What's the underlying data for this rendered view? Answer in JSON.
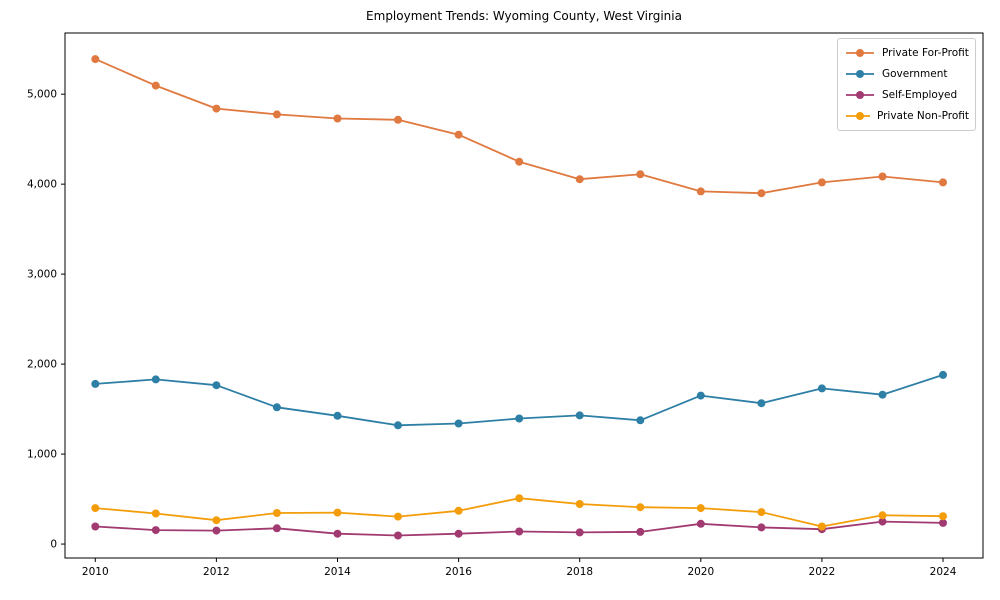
{
  "title": "Employment Trends: Wyoming County, West Virginia",
  "chart_data": {
    "type": "line",
    "title": "Employment Trends: Wyoming County, West Virginia",
    "xlabel": "",
    "ylabel": "",
    "grid": false,
    "legend_position": "upper right",
    "marker": "circle",
    "x": [
      2010,
      2011,
      2012,
      2013,
      2014,
      2015,
      2016,
      2017,
      2018,
      2019,
      2020,
      2021,
      2022,
      2023,
      2024
    ],
    "series": [
      {
        "name": "Private For-Profit",
        "color": "#e0793f",
        "values": [
          5390,
          5095,
          4840,
          4775,
          4730,
          4715,
          4550,
          4250,
          4055,
          4110,
          3920,
          3900,
          4020,
          4085,
          4020
        ]
      },
      {
        "name": "Government",
        "color": "#2e7fa6",
        "values": [
          1780,
          1830,
          1765,
          1520,
          1425,
          1320,
          1340,
          1395,
          1430,
          1375,
          1650,
          1565,
          1730,
          1660,
          1880
        ]
      },
      {
        "name": "Self-Employed",
        "color": "#a23a72",
        "values": [
          195,
          155,
          150,
          175,
          115,
          95,
          115,
          140,
          130,
          135,
          225,
          185,
          165,
          250,
          235
        ]
      },
      {
        "name": "Private Non-Profit",
        "color": "#f49d0a",
        "values": [
          400,
          340,
          265,
          345,
          350,
          305,
          370,
          510,
          445,
          410,
          400,
          355,
          195,
          320,
          310
        ]
      }
    ],
    "x_ticks": {
      "values": [
        2010,
        2012,
        2014,
        2016,
        2018,
        2020,
        2022,
        2024
      ],
      "labels": [
        "2010",
        "2012",
        "2014",
        "2016",
        "2018",
        "2020",
        "2022",
        "2024"
      ]
    },
    "y_ticks": {
      "values": [
        0,
        1000,
        2000,
        3000,
        4000,
        5000
      ],
      "labels": [
        "0",
        "1,000",
        "2,000",
        "3,000",
        "4,000",
        "5,000"
      ]
    },
    "xlim": [
      2009.5,
      2024.66
    ],
    "ylim": [
      -155,
      5680
    ]
  }
}
